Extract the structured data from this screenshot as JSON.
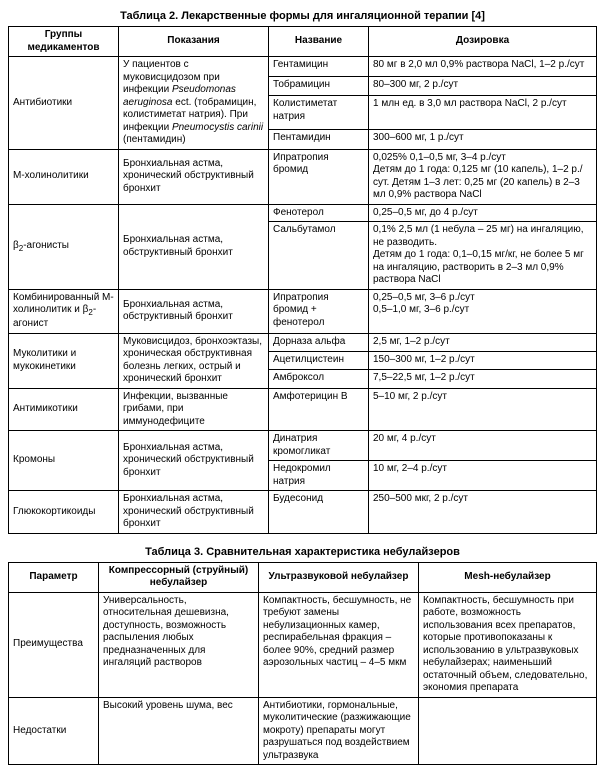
{
  "table2": {
    "title": "Таблица 2. Лекарственные формы для ингаляционной терапии [4]",
    "headers": [
      "Группы медикаментов",
      "Показания",
      "Название",
      "Дозировка"
    ],
    "col_widths": [
      "110px",
      "150px",
      "100px",
      "auto"
    ],
    "rows": [
      {
        "group": "Антибиотики",
        "group_rows": 4,
        "indic": "У пациентов с муковисцидозом при инфекции Pseudomonas aeruginosa ect. (тобрамицин, колистиметат натрия). При инфекции Pneumocystis carinii (пентамидин)",
        "indic_rows": 4,
        "name": "Гентамицин",
        "dose": "80 мг в 2,0 мл 0,9% раствора NaCl, 1–2 р./сут"
      },
      {
        "name": "Тобрамицин",
        "dose": "80–300 мг, 2 р./сут"
      },
      {
        "name": "Колистиметат натрия",
        "dose": "1 млн ед. в 3,0 мл раствора NaCl, 2 р./сут"
      },
      {
        "name": "Пентамидин",
        "dose": "300–600 мг, 1 р./сут"
      },
      {
        "group": "М-холинолитики",
        "group_rows": 1,
        "indic": "Бронхиальная астма, хронический обструктивный бронхит",
        "indic_rows": 1,
        "name": "Ипратропия бромид",
        "dose": "0,025% 0,1–0,5 мг, 3–4 р./сут\nДетям до 1 года: 0,125 мг (10 капель), 1–2 р./сут. Детям 1–3 лет: 0,25 мг (20 капель) в 2–3 мл 0,9% раствора NaCl"
      },
      {
        "group": "β2-агонисты",
        "group_sub": true,
        "group_rows": 2,
        "indic": "Бронхиальная астма, обструктивный бронхит",
        "indic_rows": 2,
        "name": "Фенотерол",
        "dose": "0,25–0,5 мг, до 4 р./сут"
      },
      {
        "name": "Сальбутамол",
        "dose": "0,1% 2,5 мл (1 небула – 25 мг) на ингаляцию, не разводить.\nДетям до 1 года: 0,1–0,15 мг/кг, не более 5 мг на ингаляцию, растворить в 2–3 мл 0,9% раствора NaCl"
      },
      {
        "group": "Комбинированный М-холинолитик и β2-агонист",
        "group_sub": true,
        "group_rows": 1,
        "indic": "Бронхиальная астма, обструктивный бронхит",
        "indic_rows": 1,
        "name": "Ипратропия бромид + фенотерол",
        "dose": "0,25–0,5 мг, 3–6 р./сут\n0,5–1,0 мг, 3–6 р./сут"
      },
      {
        "group": "Муколитики и мукокинетики",
        "group_rows": 3,
        "indic": "Муковисцидоз, бронхоэктазы, хроническая обструктивная болезнь легких, острый и хронический бронхит",
        "indic_rows": 3,
        "name": "Дорназа альфа",
        "dose": "2,5 мг, 1–2 р./сут"
      },
      {
        "name": "Ацетилцистеин",
        "dose": "150–300 мг, 1–2 р./сут"
      },
      {
        "name": "Амброксол",
        "dose": "7,5–22,5 мг, 1–2 р./сут"
      },
      {
        "group": "Антимикотики",
        "group_rows": 1,
        "indic": "Инфекции, вызванные грибами, при иммунодефиците",
        "indic_rows": 1,
        "name": "Амфотерицин В",
        "dose": "5–10 мг, 2 р./сут"
      },
      {
        "group": "Кромоны",
        "group_rows": 2,
        "indic": "Бронхиальная астма, хронический обструктивный бронхит",
        "indic_rows": 2,
        "name": "Динатрия кромогликат",
        "dose": "20 мг, 4 р./сут"
      },
      {
        "name": "Недокромил натрия",
        "dose": "10 мг, 2–4 р./сут"
      },
      {
        "group": "Глюкокортикоиды",
        "group_rows": 1,
        "indic": "Бронхиальная астма, хронический обструктивный бронхит",
        "indic_rows": 1,
        "name": "Будесонид",
        "dose": "250–500 мкг, 2 р./сут"
      }
    ]
  },
  "table3": {
    "title": "Таблица 3. Сравнительная характеристика небулайзеров",
    "headers": [
      "Параметр",
      "Компрессорный (струйный) небулайзер",
      "Ультразвуковой небулайзер",
      "Mesh-небулайзер"
    ],
    "col_widths": [
      "90px",
      "160px",
      "160px",
      "auto"
    ],
    "rows": [
      {
        "param": "Преимущества",
        "c1": "Универсальность, относительная дешевизна, доступность, возможность распыления любых предназначенных для ингаляций растворов",
        "c2": "Компактность, бесшумность, не требуют замены небулизационных камер, респирабельная фракция – более 90%, средний размер аэрозольных частиц – 4–5 мкм",
        "c3": "Компактность, бесшумность при работе, возможность использования всех препаратов, которые противопоказаны к использованию в ультразвуковых небулайзерах; наименьший остаточный объем, следовательно, экономия препарата"
      },
      {
        "param": "Недостатки",
        "c1": "Высокий уровень шума, вес",
        "c2": "Антибиотики, гормональные, муколитические (разжижающие мокроту) препараты могут разрушаться под воздействием ультразвука",
        "c3": ""
      }
    ]
  }
}
